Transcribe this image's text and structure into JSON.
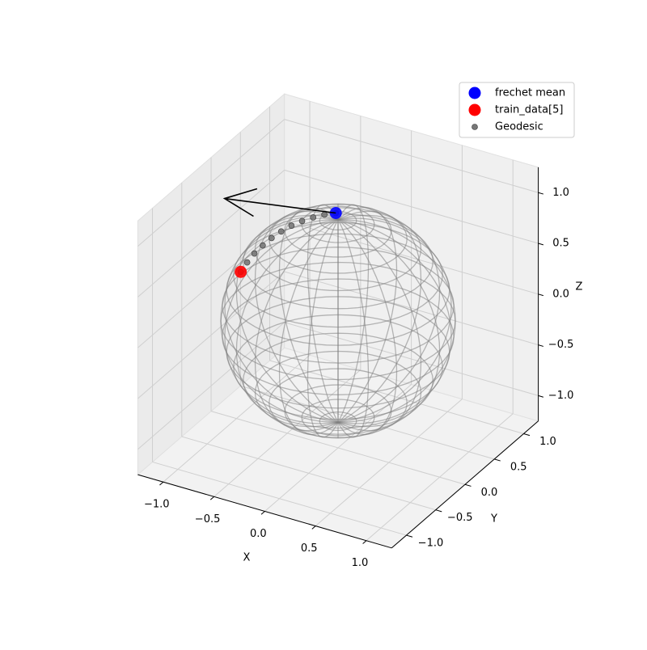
{
  "chart_data": {
    "type": "scatter3d",
    "xlabel": "X",
    "ylabel": "Y",
    "zlabel": "Z",
    "xlim": [
      -1.25,
      1.25
    ],
    "ylim": [
      -1.25,
      1.25
    ],
    "zlim": [
      -1.25,
      1.25
    ],
    "xticks": [
      {
        "value": -1,
        "label": "−1.0"
      },
      {
        "value": -0.5,
        "label": "−0.5"
      },
      {
        "value": 0,
        "label": "0.0"
      },
      {
        "value": 0.5,
        "label": "0.5"
      },
      {
        "value": 1,
        "label": "1.0"
      }
    ],
    "yticks": [
      {
        "value": -1,
        "label": "−1.0"
      },
      {
        "value": -0.5,
        "label": "−0.5"
      },
      {
        "value": 0,
        "label": "0.0"
      },
      {
        "value": 0.5,
        "label": "0.5"
      },
      {
        "value": 1,
        "label": "1.0"
      }
    ],
    "zticks": [
      {
        "value": -1,
        "label": "−1.0"
      },
      {
        "value": -0.5,
        "label": "−0.5"
      },
      {
        "value": 0,
        "label": "0.0"
      },
      {
        "value": 0.5,
        "label": "0.5"
      },
      {
        "value": 1,
        "label": "1.0"
      }
    ],
    "grid": true,
    "legend": "upper right",
    "series": [
      {
        "name": "frechet mean",
        "color": "#0000ff",
        "x": [
          -0.08
        ],
        "y": [
          0.1
        ],
        "z": [
          0.99
        ]
      },
      {
        "name": "train_data[5]",
        "color": "#ff0000",
        "x": [
          -0.67
        ],
        "y": [
          -0.5
        ],
        "z": [
          0.54
        ]
      },
      {
        "name": "Geodesic",
        "color": "#777777",
        "x": [
          -0.08,
          -0.154,
          -0.226,
          -0.297,
          -0.364,
          -0.428,
          -0.487,
          -0.541,
          -0.591,
          -0.633,
          -0.67
        ],
        "y": [
          0.1,
          0.034,
          -0.033,
          -0.099,
          -0.164,
          -0.228,
          -0.29,
          -0.348,
          -0.403,
          -0.454,
          -0.5
        ],
        "z": [
          0.99,
          0.986,
          0.971,
          0.948,
          0.915,
          0.872,
          0.821,
          0.762,
          0.695,
          0.621,
          0.54
        ]
      }
    ],
    "quiver": {
      "color": "#000000",
      "vector": [
        -0.98,
        -0.2,
        -0.04
      ]
    }
  }
}
